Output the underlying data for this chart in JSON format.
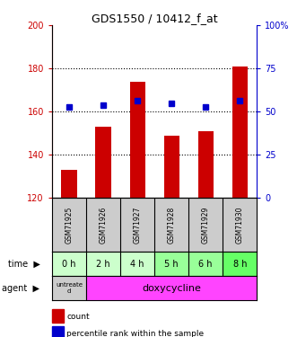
{
  "title": "GDS1550 / 10412_f_at",
  "samples": [
    "GSM71925",
    "GSM71926",
    "GSM71927",
    "GSM71928",
    "GSM71929",
    "GSM71930"
  ],
  "count_values": [
    133,
    153,
    174,
    149,
    151,
    181
  ],
  "percentile_values": [
    162,
    163,
    165,
    164,
    162,
    165
  ],
  "count_base": 120,
  "ylim_left": [
    120,
    200
  ],
  "ylim_right": [
    0,
    100
  ],
  "yticks_left": [
    120,
    140,
    160,
    180,
    200
  ],
  "ytick_labels_left": [
    "120",
    "140",
    "160",
    "180",
    "200"
  ],
  "yticks_right": [
    0,
    25,
    50,
    75,
    100
  ],
  "ytick_labels_right": [
    "0",
    "25",
    "50",
    "75",
    "100%"
  ],
  "time_labels": [
    "0 h",
    "2 h",
    "4 h",
    "5 h",
    "6 h",
    "8 h"
  ],
  "time_bg_colors": [
    "#ccffcc",
    "#ccffcc",
    "#ccffcc",
    "#99ff99",
    "#99ff99",
    "#66ff66"
  ],
  "count_color": "#cc0000",
  "percentile_color": "#0000cc",
  "bar_width": 0.45,
  "sample_bg_color": "#cccccc",
  "left_axis_color": "#cc0000",
  "right_axis_color": "#0000cc",
  "fig_width": 3.31,
  "fig_height": 3.75,
  "gridlines": [
    140,
    160,
    180
  ]
}
